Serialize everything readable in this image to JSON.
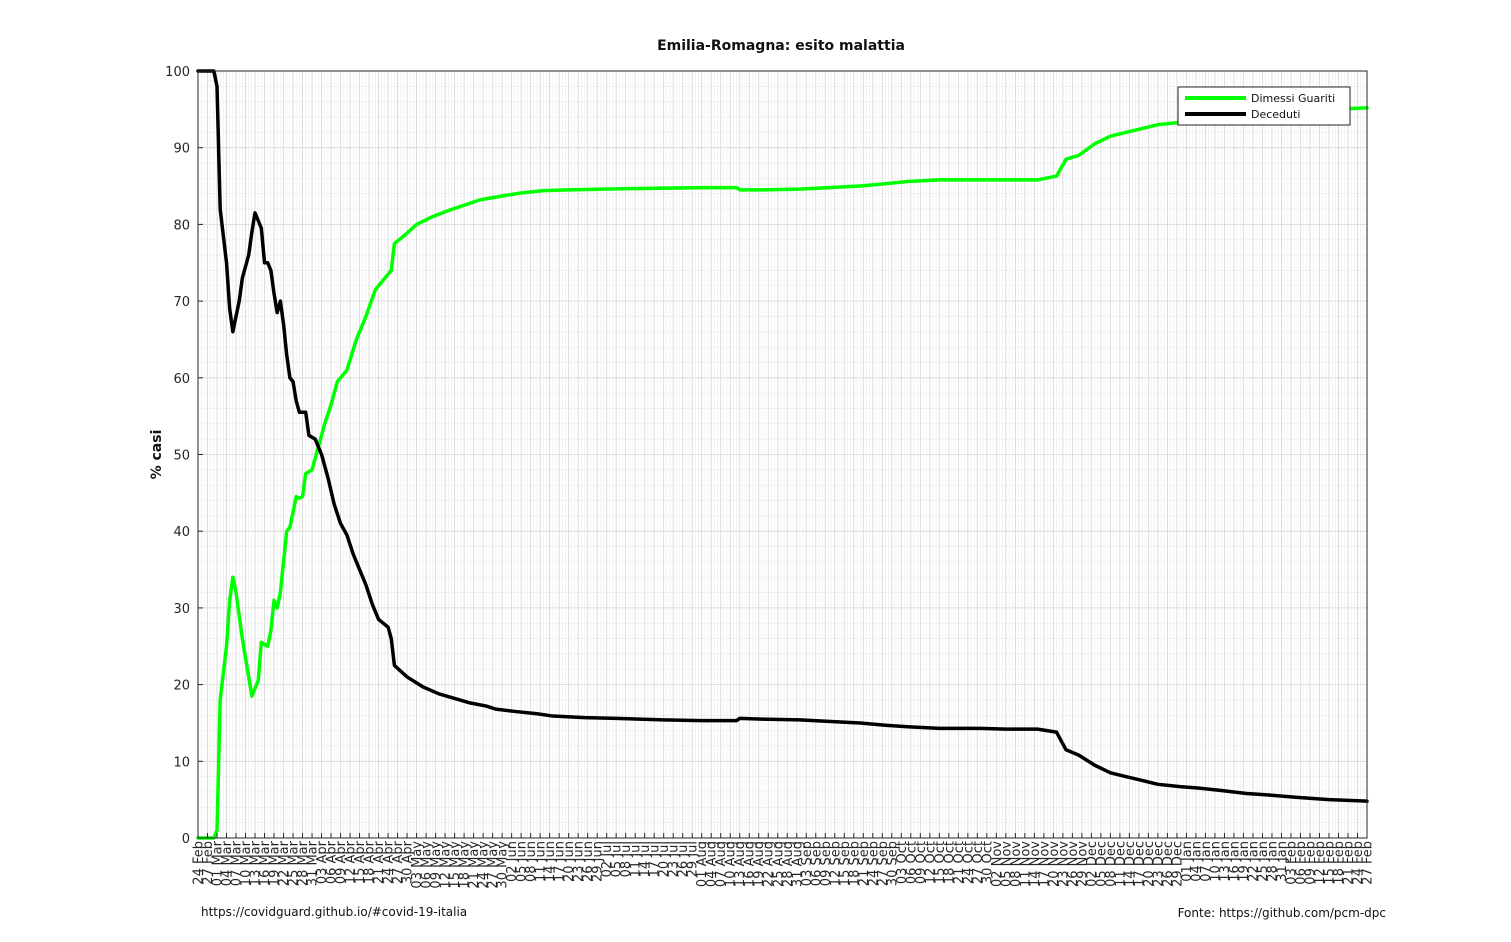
{
  "chart_data": {
    "type": "line",
    "title": "Emilia-Romagna: esito malattia",
    "ylabel": "% casi",
    "xlabel": "",
    "ylim": [
      0,
      100
    ],
    "yticks": [
      0,
      10,
      20,
      30,
      40,
      50,
      60,
      70,
      80,
      90,
      100
    ],
    "x_start": "2020-02-24",
    "x_end": "2021-02-27",
    "x_tick_labels": [
      "24 Feb",
      "27 Feb",
      "01 Mar",
      "04 Mar",
      "07 Mar",
      "10 Mar",
      "13 Mar",
      "16 Mar",
      "19 Mar",
      "22 Mar",
      "25 Mar",
      "28 Mar",
      "31 Mar",
      "03 Apr",
      "06 Apr",
      "09 Apr",
      "12 Apr",
      "15 Apr",
      "18 Apr",
      "21 Apr",
      "24 Apr",
      "27 Apr",
      "30 Apr",
      "03 May",
      "06 May",
      "09 May",
      "12 May",
      "15 May",
      "18 May",
      "21 May",
      "24 May",
      "27 May",
      "30 May",
      "02 Jun",
      "05 Jun",
      "08 Jun",
      "11 Jun",
      "14 Jun",
      "17 Jun",
      "20 Jun",
      "23 Jun",
      "26 Jun",
      "29 Jun",
      "02 Jul",
      "05 Jul",
      "08 Jul",
      "11 Jul",
      "14 Jul",
      "17 Jul",
      "20 Jul",
      "23 Jul",
      "26 Jul",
      "29 Jul",
      "01 Aug",
      "04 Aug",
      "07 Aug",
      "10 Aug",
      "13 Aug",
      "16 Aug",
      "19 Aug",
      "22 Aug",
      "25 Aug",
      "28 Aug",
      "31 Aug",
      "03 Sep",
      "06 Sep",
      "09 Sep",
      "12 Sep",
      "15 Sep",
      "18 Sep",
      "21 Sep",
      "24 Sep",
      "27 Sep",
      "30 Sep",
      "03 Oct",
      "06 Oct",
      "09 Oct",
      "12 Oct",
      "15 Oct",
      "18 Oct",
      "21 Oct",
      "24 Oct",
      "27 Oct",
      "30 Oct",
      "02 Nov",
      "05 Nov",
      "08 Nov",
      "11 Nov",
      "14 Nov",
      "17 Nov",
      "20 Nov",
      "23 Nov",
      "26 Nov",
      "29 Nov",
      "02 Dec",
      "05 Dec",
      "08 Dec",
      "11 Dec",
      "14 Dec",
      "17 Dec",
      "20 Dec",
      "23 Dec",
      "26 Dec",
      "29 Dec",
      "01 Jan",
      "04 Jan",
      "07 Jan",
      "10 Jan",
      "13 Jan",
      "16 Jan",
      "19 Jan",
      "22 Jan",
      "25 Jan",
      "28 Jan",
      "31 Jan",
      "03 Feb",
      "06 Feb",
      "09 Feb",
      "12 Feb",
      "15 Feb",
      "18 Feb",
      "21 Feb",
      "24 Feb",
      "27 Feb"
    ],
    "grid": true,
    "legend_position": "top-right",
    "series": [
      {
        "name": "Dimessi Guariti",
        "color": "#00ff00",
        "points": [
          [
            "2020-02-24",
            0
          ],
          [
            "2020-02-27",
            0
          ],
          [
            "2020-02-29",
            0
          ],
          [
            "2020-03-01",
            1
          ],
          [
            "2020-03-02",
            18
          ],
          [
            "2020-03-04",
            25
          ],
          [
            "2020-03-05",
            31
          ],
          [
            "2020-03-06",
            34
          ],
          [
            "2020-03-07",
            32
          ],
          [
            "2020-03-09",
            26
          ],
          [
            "2020-03-11",
            21
          ],
          [
            "2020-03-12",
            18.5
          ],
          [
            "2020-03-14",
            20.5
          ],
          [
            "2020-03-15",
            25.5
          ],
          [
            "2020-03-17",
            25
          ],
          [
            "2020-03-18",
            27
          ],
          [
            "2020-03-19",
            31
          ],
          [
            "2020-03-20",
            30
          ],
          [
            "2020-03-21",
            32
          ],
          [
            "2020-03-23",
            40
          ],
          [
            "2020-03-24",
            40.5
          ],
          [
            "2020-03-26",
            44.5
          ],
          [
            "2020-03-27",
            44.3
          ],
          [
            "2020-03-28",
            44.5
          ],
          [
            "2020-03-29",
            47.5
          ],
          [
            "2020-03-31",
            48
          ],
          [
            "2020-04-02",
            51
          ],
          [
            "2020-04-04",
            54
          ],
          [
            "2020-04-06",
            56.5
          ],
          [
            "2020-04-08",
            59.5
          ],
          [
            "2020-04-11",
            61
          ],
          [
            "2020-04-14",
            65
          ],
          [
            "2020-04-17",
            68
          ],
          [
            "2020-04-20",
            71.5
          ],
          [
            "2020-04-23",
            73
          ],
          [
            "2020-04-25",
            74
          ],
          [
            "2020-04-26",
            77.5
          ],
          [
            "2020-04-29",
            78.5
          ],
          [
            "2020-05-03",
            80
          ],
          [
            "2020-05-08",
            81
          ],
          [
            "2020-05-13",
            81.8
          ],
          [
            "2020-05-18",
            82.5
          ],
          [
            "2020-05-23",
            83.2
          ],
          [
            "2020-05-30",
            83.7
          ],
          [
            "2020-06-05",
            84.1
          ],
          [
            "2020-06-12",
            84.4
          ],
          [
            "2020-06-20",
            84.5
          ],
          [
            "2020-07-01",
            84.6
          ],
          [
            "2020-07-15",
            84.7
          ],
          [
            "2020-08-01",
            84.8
          ],
          [
            "2020-08-12",
            84.8
          ],
          [
            "2020-08-13",
            84.5
          ],
          [
            "2020-08-20",
            84.5
          ],
          [
            "2020-09-01",
            84.6
          ],
          [
            "2020-09-10",
            84.8
          ],
          [
            "2020-09-20",
            85
          ],
          [
            "2020-09-28",
            85.3
          ],
          [
            "2020-10-05",
            85.6
          ],
          [
            "2020-10-15",
            85.8
          ],
          [
            "2020-10-28",
            85.8
          ],
          [
            "2020-11-05",
            85.8
          ],
          [
            "2020-11-15",
            85.8
          ],
          [
            "2020-11-21",
            86.3
          ],
          [
            "2020-11-24",
            88.5
          ],
          [
            "2020-11-28",
            89
          ],
          [
            "2020-12-03",
            90.5
          ],
          [
            "2020-12-08",
            91.5
          ],
          [
            "2020-12-13",
            92
          ],
          [
            "2020-12-18",
            92.5
          ],
          [
            "2020-12-23",
            93
          ],
          [
            "2020-12-30",
            93.3
          ],
          [
            "2021-01-05",
            93.7
          ],
          [
            "2021-01-12",
            94
          ],
          [
            "2021-01-20",
            94.3
          ],
          [
            "2021-01-27",
            94.6
          ],
          [
            "2021-02-05",
            94.9
          ],
          [
            "2021-02-15",
            95
          ],
          [
            "2021-02-27",
            95.2
          ]
        ]
      },
      {
        "name": "Deceduti",
        "color": "#000000",
        "points": [
          [
            "2020-02-24",
            100
          ],
          [
            "2020-02-29",
            100
          ],
          [
            "2020-03-01",
            98
          ],
          [
            "2020-03-02",
            82
          ],
          [
            "2020-03-04",
            75
          ],
          [
            "2020-03-05",
            69
          ],
          [
            "2020-03-06",
            66
          ],
          [
            "2020-03-08",
            70
          ],
          [
            "2020-03-09",
            73
          ],
          [
            "2020-03-11",
            76
          ],
          [
            "2020-03-12",
            79
          ],
          [
            "2020-03-13",
            81.5
          ],
          [
            "2020-03-15",
            79.5
          ],
          [
            "2020-03-16",
            75
          ],
          [
            "2020-03-17",
            75
          ],
          [
            "2020-03-18",
            74
          ],
          [
            "2020-03-19",
            71
          ],
          [
            "2020-03-20",
            68.5
          ],
          [
            "2020-03-21",
            70
          ],
          [
            "2020-03-22",
            67
          ],
          [
            "2020-03-23",
            63
          ],
          [
            "2020-03-24",
            60
          ],
          [
            "2020-03-25",
            59.5
          ],
          [
            "2020-03-26",
            57
          ],
          [
            "2020-03-27",
            55.5
          ],
          [
            "2020-03-29",
            55.5
          ],
          [
            "2020-03-30",
            52.5
          ],
          [
            "2020-04-01",
            52
          ],
          [
            "2020-04-03",
            50
          ],
          [
            "2020-04-05",
            47
          ],
          [
            "2020-04-07",
            43.5
          ],
          [
            "2020-04-09",
            41
          ],
          [
            "2020-04-11",
            39.5
          ],
          [
            "2020-04-13",
            37
          ],
          [
            "2020-04-15",
            35
          ],
          [
            "2020-04-17",
            33
          ],
          [
            "2020-04-19",
            30.5
          ],
          [
            "2020-04-21",
            28.5
          ],
          [
            "2020-04-24",
            27.5
          ],
          [
            "2020-04-25",
            26
          ],
          [
            "2020-04-26",
            22.5
          ],
          [
            "2020-04-30",
            21
          ],
          [
            "2020-05-05",
            19.7
          ],
          [
            "2020-05-10",
            18.8
          ],
          [
            "2020-05-15",
            18.2
          ],
          [
            "2020-05-20",
            17.6
          ],
          [
            "2020-05-25",
            17.2
          ],
          [
            "2020-05-28",
            16.8
          ],
          [
            "2020-06-03",
            16.5
          ],
          [
            "2020-06-10",
            16.2
          ],
          [
            "2020-06-15",
            15.9
          ],
          [
            "2020-06-25",
            15.7
          ],
          [
            "2020-07-05",
            15.6
          ],
          [
            "2020-07-20",
            15.4
          ],
          [
            "2020-08-01",
            15.3
          ],
          [
            "2020-08-12",
            15.3
          ],
          [
            "2020-08-13",
            15.6
          ],
          [
            "2020-08-20",
            15.5
          ],
          [
            "2020-09-01",
            15.4
          ],
          [
            "2020-09-10",
            15.2
          ],
          [
            "2020-09-20",
            15
          ],
          [
            "2020-09-28",
            14.7
          ],
          [
            "2020-10-05",
            14.5
          ],
          [
            "2020-10-15",
            14.3
          ],
          [
            "2020-10-28",
            14.3
          ],
          [
            "2020-11-05",
            14.2
          ],
          [
            "2020-11-15",
            14.2
          ],
          [
            "2020-11-21",
            13.8
          ],
          [
            "2020-11-24",
            11.5
          ],
          [
            "2020-11-28",
            10.8
          ],
          [
            "2020-12-03",
            9.5
          ],
          [
            "2020-12-08",
            8.5
          ],
          [
            "2020-12-13",
            8
          ],
          [
            "2020-12-18",
            7.5
          ],
          [
            "2020-12-23",
            7
          ],
          [
            "2020-12-30",
            6.7
          ],
          [
            "2021-01-05",
            6.5
          ],
          [
            "2021-01-12",
            6.2
          ],
          [
            "2021-01-20",
            5.8
          ],
          [
            "2021-01-27",
            5.6
          ],
          [
            "2021-02-05",
            5.3
          ],
          [
            "2021-02-15",
            5
          ],
          [
            "2021-02-27",
            4.8
          ]
        ]
      }
    ]
  },
  "footer": {
    "left": "https://covidguard.github.io/#covid-19-italia",
    "right": "Fonte: https://github.com/pcm-dpc"
  }
}
